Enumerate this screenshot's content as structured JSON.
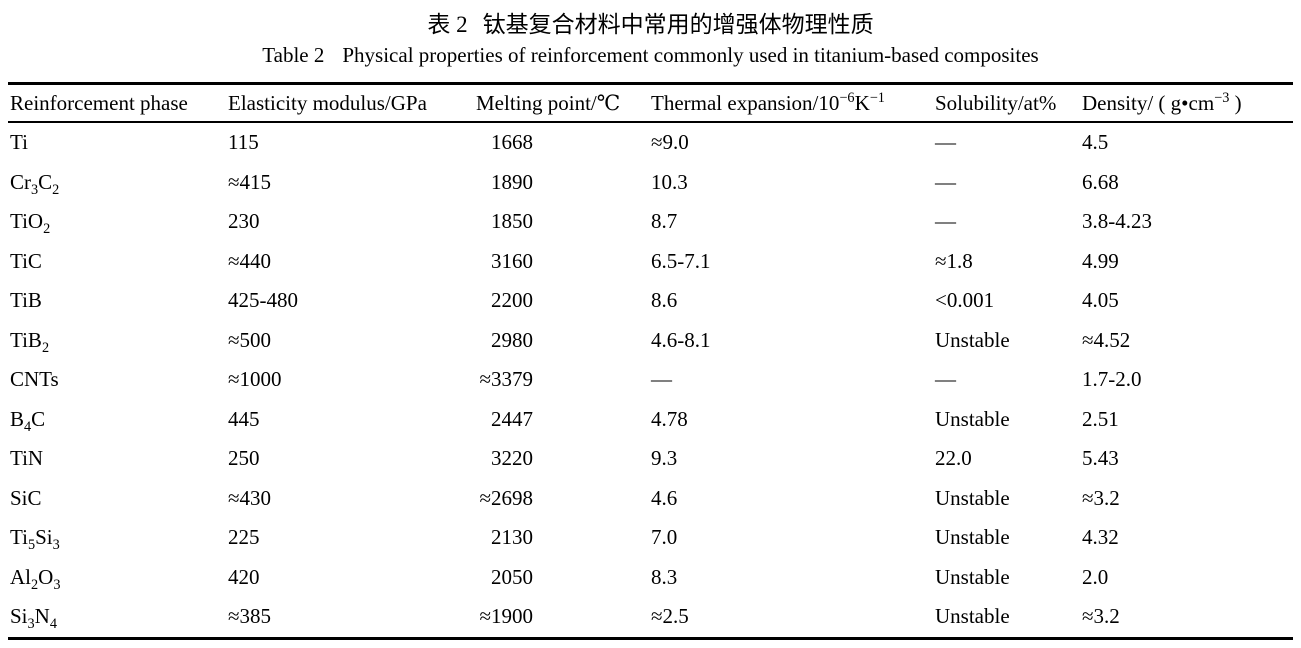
{
  "page": {
    "background": "#ffffff",
    "text_color": "#000000"
  },
  "title_zh": {
    "label": "表 2",
    "text": "钛基复合材料中常用的增强体物理性质"
  },
  "title_en": {
    "label": "Table 2",
    "text": "Physical properties of reinforcement commonly used in titanium-based composites"
  },
  "table": {
    "columns": [
      {
        "key": "phase",
        "label": "Reinforcement phase"
      },
      {
        "key": "modulus",
        "label": "Elasticity modulus/GPa"
      },
      {
        "key": "melting_point",
        "label": "Melting point/℃"
      },
      {
        "key": "thermal_expansion",
        "label": "Thermal expansion/10[−6]K[−1]"
      },
      {
        "key": "solubility",
        "label": "Solubility/at%"
      },
      {
        "key": "density",
        "label": "Density/ ( g•cm[−3] )"
      }
    ],
    "rows": [
      {
        "phase": "Ti",
        "modulus": "115",
        "melting_point": "1668",
        "thermal_expansion": "≈9.0",
        "solubility": "—",
        "density": "4.5"
      },
      {
        "phase": "Cr{3}C{2}",
        "modulus": "≈415",
        "melting_point": "1890",
        "thermal_expansion": "10.3",
        "solubility": "—",
        "density": "6.68"
      },
      {
        "phase": "TiO{2}",
        "modulus": "230",
        "melting_point": "1850",
        "thermal_expansion": "8.7",
        "solubility": "—",
        "density": "3.8-4.23"
      },
      {
        "phase": "TiC",
        "modulus": "≈440",
        "melting_point": "3160",
        "thermal_expansion": "6.5-7.1",
        "solubility": "≈1.8",
        "density": "4.99"
      },
      {
        "phase": "TiB",
        "modulus": "425-480",
        "melting_point": "2200",
        "thermal_expansion": "8.6",
        "solubility": "<0.001",
        "density": "4.05"
      },
      {
        "phase": "TiB{2}",
        "modulus": "≈500",
        "melting_point": "2980",
        "thermal_expansion": "4.6-8.1",
        "solubility": "Unstable",
        "density": "≈4.52"
      },
      {
        "phase": "CNTs",
        "modulus": "≈1000",
        "melting_point": "≈3379",
        "thermal_expansion": "—",
        "solubility": "—",
        "density": "1.7-2.0"
      },
      {
        "phase": "B{4}C",
        "modulus": "445",
        "melting_point": "2447",
        "thermal_expansion": "4.78",
        "solubility": "Unstable",
        "density": "2.51"
      },
      {
        "phase": "TiN",
        "modulus": "250",
        "melting_point": "3220",
        "thermal_expansion": "9.3",
        "solubility": "22.0",
        "density": "5.43"
      },
      {
        "phase": "SiC",
        "modulus": "≈430",
        "melting_point": "≈2698",
        "thermal_expansion": "4.6",
        "solubility": "Unstable",
        "density": "≈3.2"
      },
      {
        "phase": "Ti{5}Si{3}",
        "modulus": "225",
        "melting_point": "2130",
        "thermal_expansion": "7.0",
        "solubility": "Unstable",
        "density": "4.32"
      },
      {
        "phase": "Al{2}O{3}",
        "modulus": "420",
        "melting_point": "2050",
        "thermal_expansion": "8.3",
        "solubility": "Unstable",
        "density": "2.0"
      },
      {
        "phase": "Si{3}N{4}",
        "modulus": "≈385",
        "melting_point": "≈1900",
        "thermal_expansion": "≈2.5",
        "solubility": "Unstable",
        "density": "≈3.2"
      }
    ]
  }
}
